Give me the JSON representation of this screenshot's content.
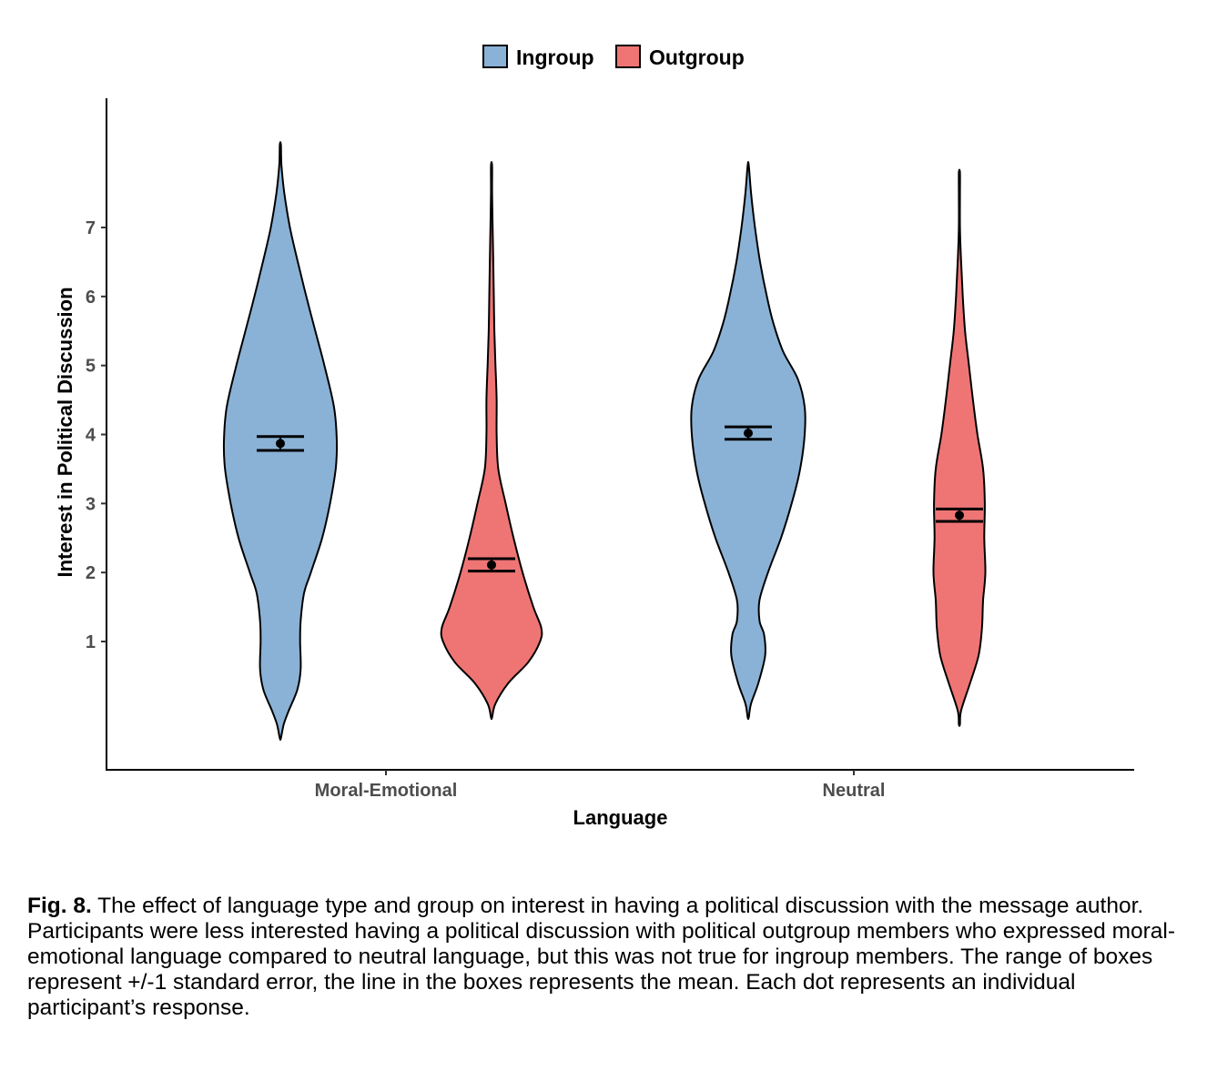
{
  "chart_data": {
    "type": "violin",
    "xlabel": "Language",
    "ylabel": "Interest in Political Discussion",
    "categories": [
      "Moral-Emotional",
      "Neutral"
    ],
    "y_ticks": [
      1,
      2,
      3,
      4,
      5,
      6,
      7
    ],
    "ylim": [
      -0.8,
      8.8
    ],
    "legend": {
      "placement": "top",
      "entries": [
        "Ingroup",
        "Outgroup"
      ]
    },
    "grid": false,
    "series": [
      {
        "name": "Ingroup",
        "color": "#8ab2d6",
        "groups": [
          {
            "category": "Moral-Emotional",
            "mean": 3.87,
            "se_low": 3.77,
            "se_high": 3.97,
            "profile": [
              [
                -0.4,
                0.01
              ],
              [
                -0.2,
                0.06
              ],
              [
                0.0,
                0.15
              ],
              [
                0.3,
                0.3
              ],
              [
                0.6,
                0.36
              ],
              [
                1.0,
                0.35
              ],
              [
                1.3,
                0.36
              ],
              [
                1.7,
                0.42
              ],
              [
                2.0,
                0.54
              ],
              [
                2.5,
                0.74
              ],
              [
                3.0,
                0.88
              ],
              [
                3.5,
                0.98
              ],
              [
                3.9,
                1.0
              ],
              [
                4.4,
                0.95
              ],
              [
                5.0,
                0.78
              ],
              [
                5.5,
                0.62
              ],
              [
                6.0,
                0.46
              ],
              [
                6.5,
                0.31
              ],
              [
                7.0,
                0.17
              ],
              [
                7.5,
                0.07
              ],
              [
                7.9,
                0.02
              ],
              [
                8.2,
                0.01
              ]
            ]
          },
          {
            "category": "Neutral",
            "mean": 4.02,
            "se_low": 3.93,
            "se_high": 4.11,
            "profile": [
              [
                -0.1,
                0.01
              ],
              [
                0.1,
                0.05
              ],
              [
                0.4,
                0.18
              ],
              [
                0.8,
                0.3
              ],
              [
                1.1,
                0.28
              ],
              [
                1.3,
                0.2
              ],
              [
                1.6,
                0.2
              ],
              [
                2.0,
                0.35
              ],
              [
                2.5,
                0.58
              ],
              [
                3.0,
                0.77
              ],
              [
                3.5,
                0.92
              ],
              [
                4.0,
                1.0
              ],
              [
                4.4,
                1.0
              ],
              [
                4.8,
                0.88
              ],
              [
                5.2,
                0.62
              ],
              [
                5.6,
                0.45
              ],
              [
                6.0,
                0.33
              ],
              [
                6.5,
                0.21
              ],
              [
                7.0,
                0.12
              ],
              [
                7.5,
                0.05
              ],
              [
                7.9,
                0.01
              ]
            ]
          }
        ]
      },
      {
        "name": "Outgroup",
        "color": "#ef7575",
        "groups": [
          {
            "category": "Moral-Emotional",
            "mean": 2.11,
            "se_low": 2.02,
            "se_high": 2.2,
            "profile": [
              [
                -0.1,
                0.01
              ],
              [
                0.1,
                0.07
              ],
              [
                0.4,
                0.3
              ],
              [
                0.7,
                0.65
              ],
              [
                1.0,
                0.86
              ],
              [
                1.2,
                0.88
              ],
              [
                1.5,
                0.74
              ],
              [
                2.0,
                0.55
              ],
              [
                2.5,
                0.39
              ],
              [
                3.0,
                0.25
              ],
              [
                3.5,
                0.12
              ],
              [
                4.0,
                0.09
              ],
              [
                4.5,
                0.09
              ],
              [
                5.0,
                0.07
              ],
              [
                5.5,
                0.05
              ],
              [
                6.0,
                0.04
              ],
              [
                6.5,
                0.03
              ],
              [
                7.0,
                0.02
              ],
              [
                7.5,
                0.01
              ],
              [
                7.9,
                0.01
              ]
            ]
          },
          {
            "category": "Neutral",
            "mean": 2.83,
            "se_low": 2.74,
            "se_high": 2.92,
            "profile": [
              [
                -0.2,
                0.01
              ],
              [
                0.0,
                0.03
              ],
              [
                0.4,
                0.19
              ],
              [
                0.8,
                0.34
              ],
              [
                1.2,
                0.4
              ],
              [
                1.6,
                0.42
              ],
              [
                2.0,
                0.46
              ],
              [
                2.5,
                0.44
              ],
              [
                3.0,
                0.45
              ],
              [
                3.5,
                0.42
              ],
              [
                4.0,
                0.32
              ],
              [
                4.5,
                0.24
              ],
              [
                5.0,
                0.17
              ],
              [
                5.5,
                0.1
              ],
              [
                6.0,
                0.06
              ],
              [
                6.5,
                0.03
              ],
              [
                7.0,
                0.01
              ],
              [
                7.5,
                0.01
              ],
              [
                7.8,
                0.01
              ]
            ]
          }
        ]
      }
    ]
  },
  "caption": {
    "label": "Fig. 8.",
    "text": " The effect of language type and group on interest in having a political discussion with the message author. Participants were less interested having a political discussion with political outgroup members who expressed moral-emotional language compared to neutral language, but this was not true for ingroup members. The range of boxes represent +/-1 standard error, the line in the boxes represents the mean. Each dot represents an individual participant’s response."
  }
}
